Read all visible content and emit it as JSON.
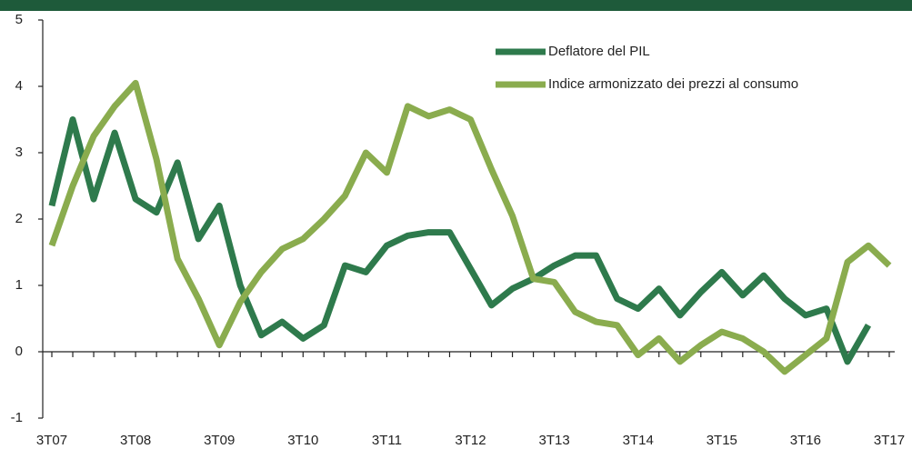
{
  "chart_data": {
    "type": "line",
    "categories": [
      "3T07",
      null,
      null,
      null,
      "3T08",
      null,
      null,
      null,
      "3T09",
      null,
      null,
      null,
      "3T10",
      null,
      null,
      null,
      "3T11",
      null,
      null,
      null,
      "3T12",
      null,
      null,
      null,
      "3T13",
      null,
      null,
      null,
      "3T14",
      null,
      null,
      null,
      "3T15",
      null,
      null,
      null,
      "3T16",
      null,
      null,
      null,
      "3T17"
    ],
    "series": [
      {
        "name": "Deflatore del PIL",
        "color": "#2e7a4c",
        "values": [
          2.2,
          3.5,
          2.3,
          3.3,
          2.3,
          2.1,
          2.85,
          1.7,
          2.2,
          1.0,
          0.25,
          0.45,
          0.2,
          0.4,
          1.3,
          1.2,
          1.6,
          1.75,
          1.8,
          1.8,
          1.25,
          0.7,
          0.95,
          1.1,
          1.3,
          1.45,
          1.45,
          0.8,
          0.65,
          0.95,
          0.55,
          0.9,
          1.2,
          0.85,
          1.15,
          0.8,
          0.55,
          0.65,
          -0.15,
          0.4,
          null
        ]
      },
      {
        "name": "Indice armonizzato dei prezzi al consumo",
        "color": "#8aac4e",
        "values": [
          1.6,
          2.5,
          3.25,
          3.7,
          4.05,
          2.9,
          1.4,
          0.8,
          0.1,
          0.75,
          1.2,
          1.55,
          1.7,
          2.0,
          2.35,
          3.0,
          2.7,
          3.7,
          3.55,
          3.65,
          3.5,
          2.75,
          2.05,
          1.1,
          1.05,
          0.6,
          0.45,
          0.4,
          -0.05,
          0.2,
          -0.15,
          0.1,
          0.3,
          0.2,
          0.0,
          -0.3,
          -0.05,
          0.2,
          1.35,
          1.6,
          1.3
        ]
      }
    ],
    "ylim": [
      -1,
      5
    ],
    "yticks": [
      -1,
      0,
      1,
      2,
      3,
      4,
      5
    ],
    "grid": false,
    "legend": "upper right"
  }
}
